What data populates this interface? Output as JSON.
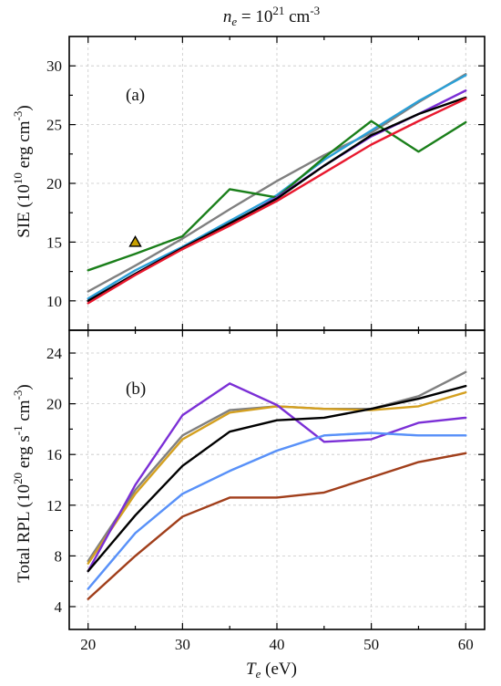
{
  "figure": {
    "title_ne": "n",
    "title_sub": "e",
    "title_eq": " = 10",
    "title_exp": "21",
    "title_unit": " cm",
    "title_unit_exp": "-3",
    "xlabel_main": "T",
    "xlabel_sub": "e",
    "xlabel_unit": " (eV)"
  },
  "chart_data": [
    {
      "type": "line",
      "panel_label": "(a)",
      "ylabel_pre": "SIE (10",
      "ylabel_exp1": "10",
      "ylabel_mid": " erg cm",
      "ylabel_exp2": "-3",
      "ylabel_post": ")",
      "xlim": [
        18,
        62
      ],
      "ylim": [
        7.5,
        32.5
      ],
      "xticks": [
        20,
        30,
        40,
        50,
        60
      ],
      "yticks": [
        10,
        15,
        20,
        25,
        30
      ],
      "grid": true,
      "x": [
        20,
        25,
        30,
        35,
        40,
        45,
        50,
        55,
        60
      ],
      "series": [
        {
          "color": "#808080",
          "values": [
            10.8,
            13.0,
            15.3,
            17.8,
            20.2,
            22.4,
            24.3,
            26.9,
            29.3
          ]
        },
        {
          "color": "#2a9fd6",
          "values": [
            10.2,
            12.6,
            14.6,
            16.8,
            19.0,
            22.0,
            24.5,
            27.0,
            29.2
          ]
        },
        {
          "color": "#1a7f1a",
          "values": [
            12.6,
            14.0,
            15.5,
            19.5,
            18.8,
            22.2,
            25.3,
            22.7,
            25.2
          ]
        },
        {
          "color": "#7b2fd6",
          "values": [
            10.0,
            12.3,
            14.5,
            16.5,
            18.8,
            21.5,
            24.0,
            25.9,
            27.9
          ]
        },
        {
          "color": "#000000",
          "values": [
            10.0,
            12.3,
            14.5,
            16.6,
            18.7,
            21.5,
            24.1,
            25.9,
            27.3
          ]
        },
        {
          "color": "#e8182e",
          "values": [
            9.8,
            12.2,
            14.4,
            16.4,
            18.5,
            20.9,
            23.3,
            25.3,
            27.2
          ]
        }
      ],
      "markers": [
        {
          "x": 25,
          "y": 15.0,
          "shape": "triangle",
          "color": "#c8a000"
        }
      ]
    },
    {
      "type": "line",
      "panel_label": "(b)",
      "ylabel_pre": "Total RPL (10",
      "ylabel_exp1": "20",
      "ylabel_mid": " erg s",
      "ylabel_exp2": "-1",
      "ylabel_mid2": " cm",
      "ylabel_exp3": "-3",
      "ylabel_post": ")",
      "xlim": [
        18,
        62
      ],
      "ylim": [
        2.2,
        25.8
      ],
      "xticks": [
        20,
        30,
        40,
        50,
        60
      ],
      "yticks": [
        4,
        8,
        12,
        16,
        20,
        24
      ],
      "grid": true,
      "x": [
        20,
        25,
        30,
        35,
        40,
        45,
        50,
        55,
        60
      ],
      "series": [
        {
          "color": "#ffc8f0",
          "width": 6,
          "values": [
            4.6,
            8.0,
            11.1,
            12.6,
            12.6,
            13.0,
            14.2,
            15.4,
            16.1
          ]
        },
        {
          "color": "#80f0f0",
          "width": 5,
          "values": [
            5.4,
            9.8,
            12.9,
            14.7,
            16.3,
            17.5,
            17.7,
            17.5,
            17.5
          ]
        },
        {
          "color": "#808080",
          "values": [
            7.6,
            13.2,
            17.5,
            19.5,
            19.8,
            19.6,
            19.6,
            20.6,
            22.5
          ]
        },
        {
          "color": "#d4a020",
          "values": [
            7.4,
            12.9,
            17.2,
            19.3,
            19.8,
            19.6,
            19.5,
            19.8,
            20.9
          ]
        },
        {
          "color": "#7b2fd6",
          "values": [
            6.8,
            13.6,
            19.1,
            21.6,
            19.9,
            17.0,
            17.2,
            18.5,
            18.9
          ]
        },
        {
          "color": "#000000",
          "values": [
            6.8,
            11.2,
            15.1,
            17.8,
            18.7,
            18.9,
            19.6,
            20.4,
            21.4
          ]
        },
        {
          "color": "#5b8ff9",
          "values": [
            5.4,
            9.8,
            12.9,
            14.7,
            16.3,
            17.5,
            17.7,
            17.5,
            17.5
          ]
        },
        {
          "color": "#a0401a",
          "values": [
            4.6,
            8.0,
            11.1,
            12.6,
            12.6,
            13.0,
            14.2,
            15.4,
            16.1
          ]
        }
      ],
      "markers": []
    }
  ]
}
